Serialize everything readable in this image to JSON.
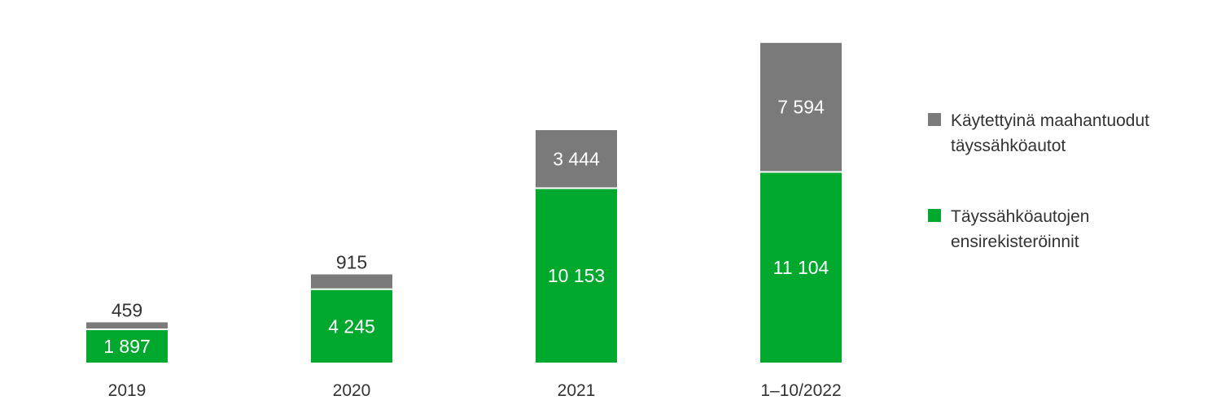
{
  "chart_data": {
    "type": "bar",
    "stacked": true,
    "categories": [
      "2019",
      "2020",
      "2021",
      "1–10/2022"
    ],
    "series": [
      {
        "name": "Täyssähköautojen ensirekisteröinnit",
        "color": "#00a82d",
        "values": [
          1897,
          4245,
          10153,
          11104
        ],
        "labels": [
          "1 897",
          "4 245",
          "10 153",
          "11 104"
        ]
      },
      {
        "name": "Käytettyinä maahantuodut täyssähköautot",
        "color": "#7a7a7a",
        "values": [
          459,
          915,
          3444,
          7594
        ],
        "labels": [
          "459",
          "915",
          "3 444",
          "7 594"
        ]
      }
    ],
    "legend_position": "right",
    "grid": false,
    "axes_visible": false
  },
  "legend": {
    "items": [
      {
        "label": "Käytettyinä maahantuodut täyssähköautot",
        "color": "#7a7a7a"
      },
      {
        "label": "Täyssähköautojen ensirekisteröinnit",
        "color": "#00a82d"
      }
    ]
  }
}
